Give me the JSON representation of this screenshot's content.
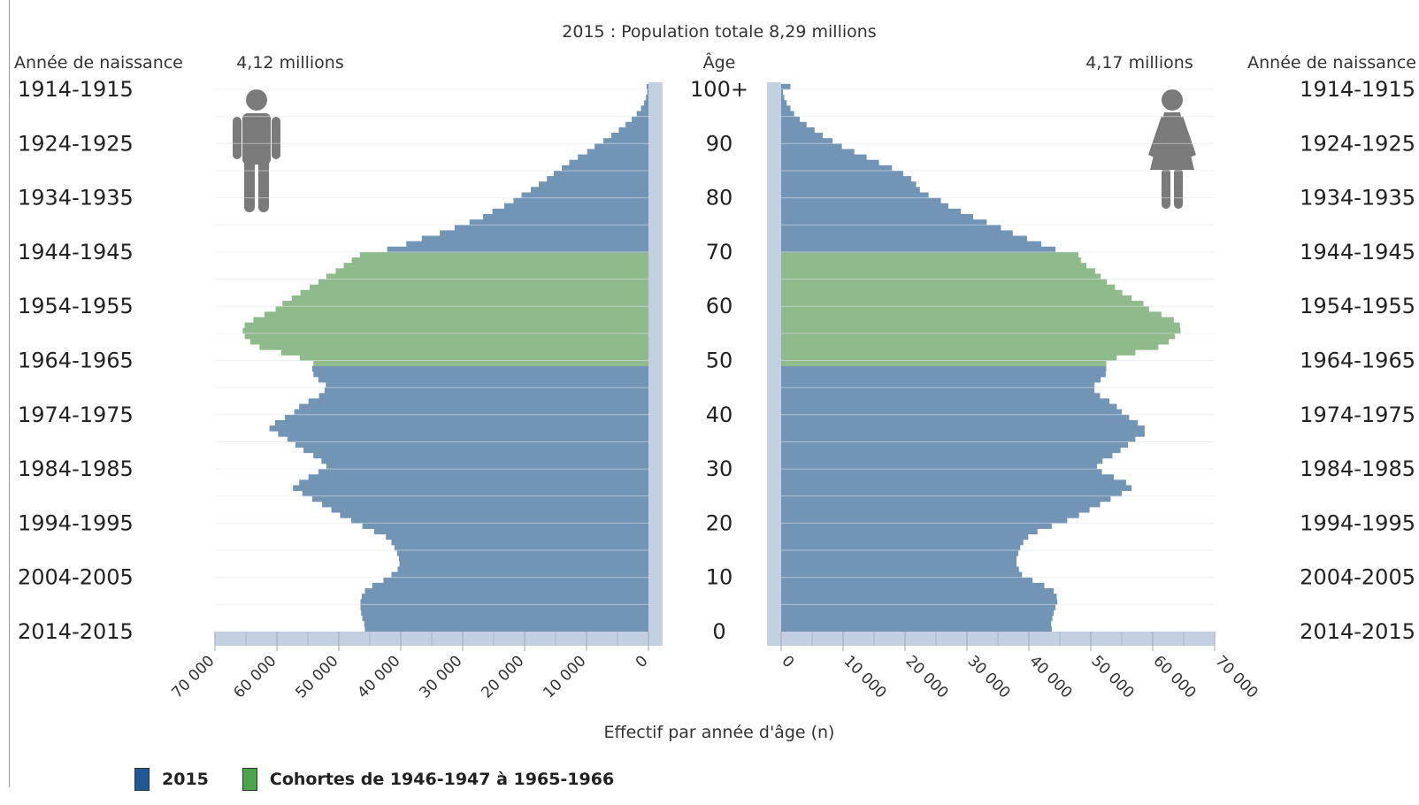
{
  "chart_data": {
    "type": "bar",
    "subtype": "population-pyramid",
    "title": "2015 : Population totale 8,29 millions",
    "xlabel": "Effectif par année d'âge (n)",
    "center_label": "Âge",
    "birth_year_label": "Année de naissance",
    "men_total": "4,12 millions",
    "women_total": "4,17 millions",
    "xlim": [
      0,
      70000
    ],
    "x_ticks": [
      0,
      10000,
      20000,
      30000,
      40000,
      50000,
      60000,
      70000
    ],
    "x_tick_labels_left": [
      "70 000",
      "60 000",
      "50 000",
      "40 000",
      "30 000",
      "20 000",
      "10 000",
      "0"
    ],
    "x_tick_labels_right": [
      "0",
      "10 000",
      "20 000",
      "30 000",
      "40 000",
      "50 000",
      "60 000",
      "70 000"
    ],
    "age_ticks": [
      0,
      10,
      20,
      30,
      40,
      50,
      60,
      70,
      80,
      90,
      100
    ],
    "age_tick_labels": [
      "0",
      "10",
      "20",
      "30",
      "40",
      "50",
      "60",
      "70",
      "80",
      "90",
      "100+"
    ],
    "birth_year_ticks": [
      "2014-2015",
      "2004-2005",
      "1994-1995",
      "1984-1985",
      "1974-1975",
      "1964-1965",
      "1954-1955",
      "1944-1945",
      "1934-1935",
      "1924-1925",
      "1914-1915"
    ],
    "highlight_ages": [
      49,
      69
    ],
    "colors": {
      "base": "#7395b5",
      "highlight": "#8fba8c",
      "axis": "#c2d0e2",
      "grid": "#dfe6ef"
    },
    "series": [
      {
        "name": "Hommes",
        "values": [
          45800,
          45900,
          46200,
          46400,
          46500,
          46500,
          46300,
          45800,
          44600,
          42800,
          41500,
          40500,
          40200,
          40300,
          40600,
          41000,
          41500,
          42400,
          44300,
          46200,
          48000,
          49800,
          51200,
          52700,
          54300,
          55900,
          57400,
          56400,
          54900,
          53300,
          52000,
          52800,
          54100,
          55700,
          57000,
          58300,
          59800,
          61200,
          60300,
          58700,
          57200,
          56400,
          54900,
          53200,
          52300,
          52100,
          53300,
          54100,
          54300,
          54100,
          56300,
          59300,
          62800,
          64300,
          65200,
          65500,
          65200,
          63800,
          62000,
          60200,
          59100,
          57600,
          56200,
          54700,
          53300,
          52000,
          50500,
          49200,
          47900,
          46600,
          42200,
          39100,
          36600,
          33700,
          31300,
          28900,
          26700,
          25200,
          23300,
          21800,
          20500,
          19000,
          17700,
          16400,
          15300,
          14000,
          12800,
          11400,
          9900,
          8700,
          7300,
          6000,
          4800,
          3700,
          2700,
          1900,
          1200,
          700,
          400,
          200,
          300
        ]
      },
      {
        "name": "Femmes",
        "values": [
          43700,
          43600,
          43800,
          44000,
          44300,
          44600,
          44500,
          44000,
          42500,
          40600,
          38900,
          38400,
          38000,
          38000,
          38300,
          38600,
          39100,
          39900,
          41400,
          43700,
          46200,
          48100,
          49800,
          51500,
          53200,
          55000,
          56600,
          55700,
          53700,
          51800,
          51000,
          51900,
          53500,
          54800,
          56000,
          57200,
          58700,
          58700,
          57600,
          56200,
          55000,
          54200,
          53000,
          51500,
          50600,
          50600,
          51600,
          52400,
          52500,
          52500,
          54200,
          57200,
          60900,
          62600,
          63600,
          64500,
          64400,
          63400,
          61400,
          59400,
          58500,
          56600,
          55100,
          53900,
          52600,
          51600,
          50700,
          49300,
          48400,
          48000,
          44300,
          42000,
          39700,
          37400,
          35500,
          33200,
          31000,
          29000,
          27000,
          25800,
          23800,
          22400,
          21800,
          21000,
          19700,
          17900,
          15800,
          13800,
          11800,
          9800,
          8300,
          6700,
          5400,
          4100,
          3000,
          2100,
          1500,
          900,
          500,
          300,
          1500
        ]
      }
    ],
    "legend": [
      {
        "label": "2015",
        "color": "#1f5a96"
      },
      {
        "label": "Cohortes de 1946-1947 à 1965-1966",
        "color": "#4ba64b"
      }
    ]
  }
}
